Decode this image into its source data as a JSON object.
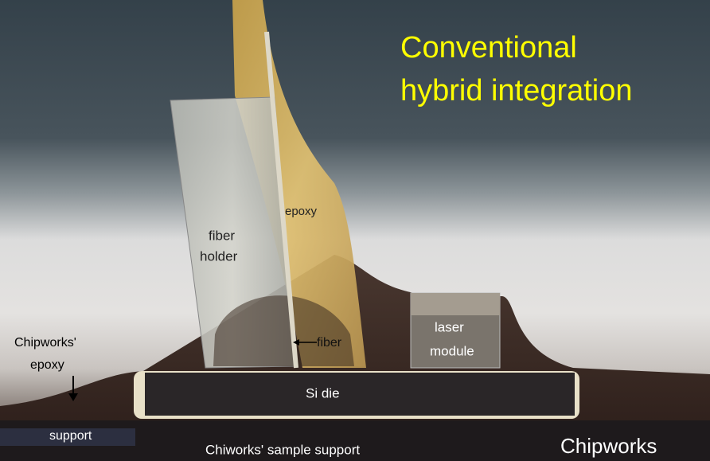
{
  "title": {
    "line1": "Conventional",
    "line2": "hybrid integration"
  },
  "labels": {
    "epoxy": "epoxy",
    "fiber_holder": [
      "fiber",
      "holder"
    ],
    "chipworks_epoxy": [
      "Chipworks'",
      "epoxy"
    ],
    "fiber": "fiber",
    "laser_module": [
      "laser",
      "module"
    ],
    "si_die": "Si die",
    "support": "support",
    "sample_support": "Chiworks' sample support",
    "watermark": "Chipworks"
  }
}
